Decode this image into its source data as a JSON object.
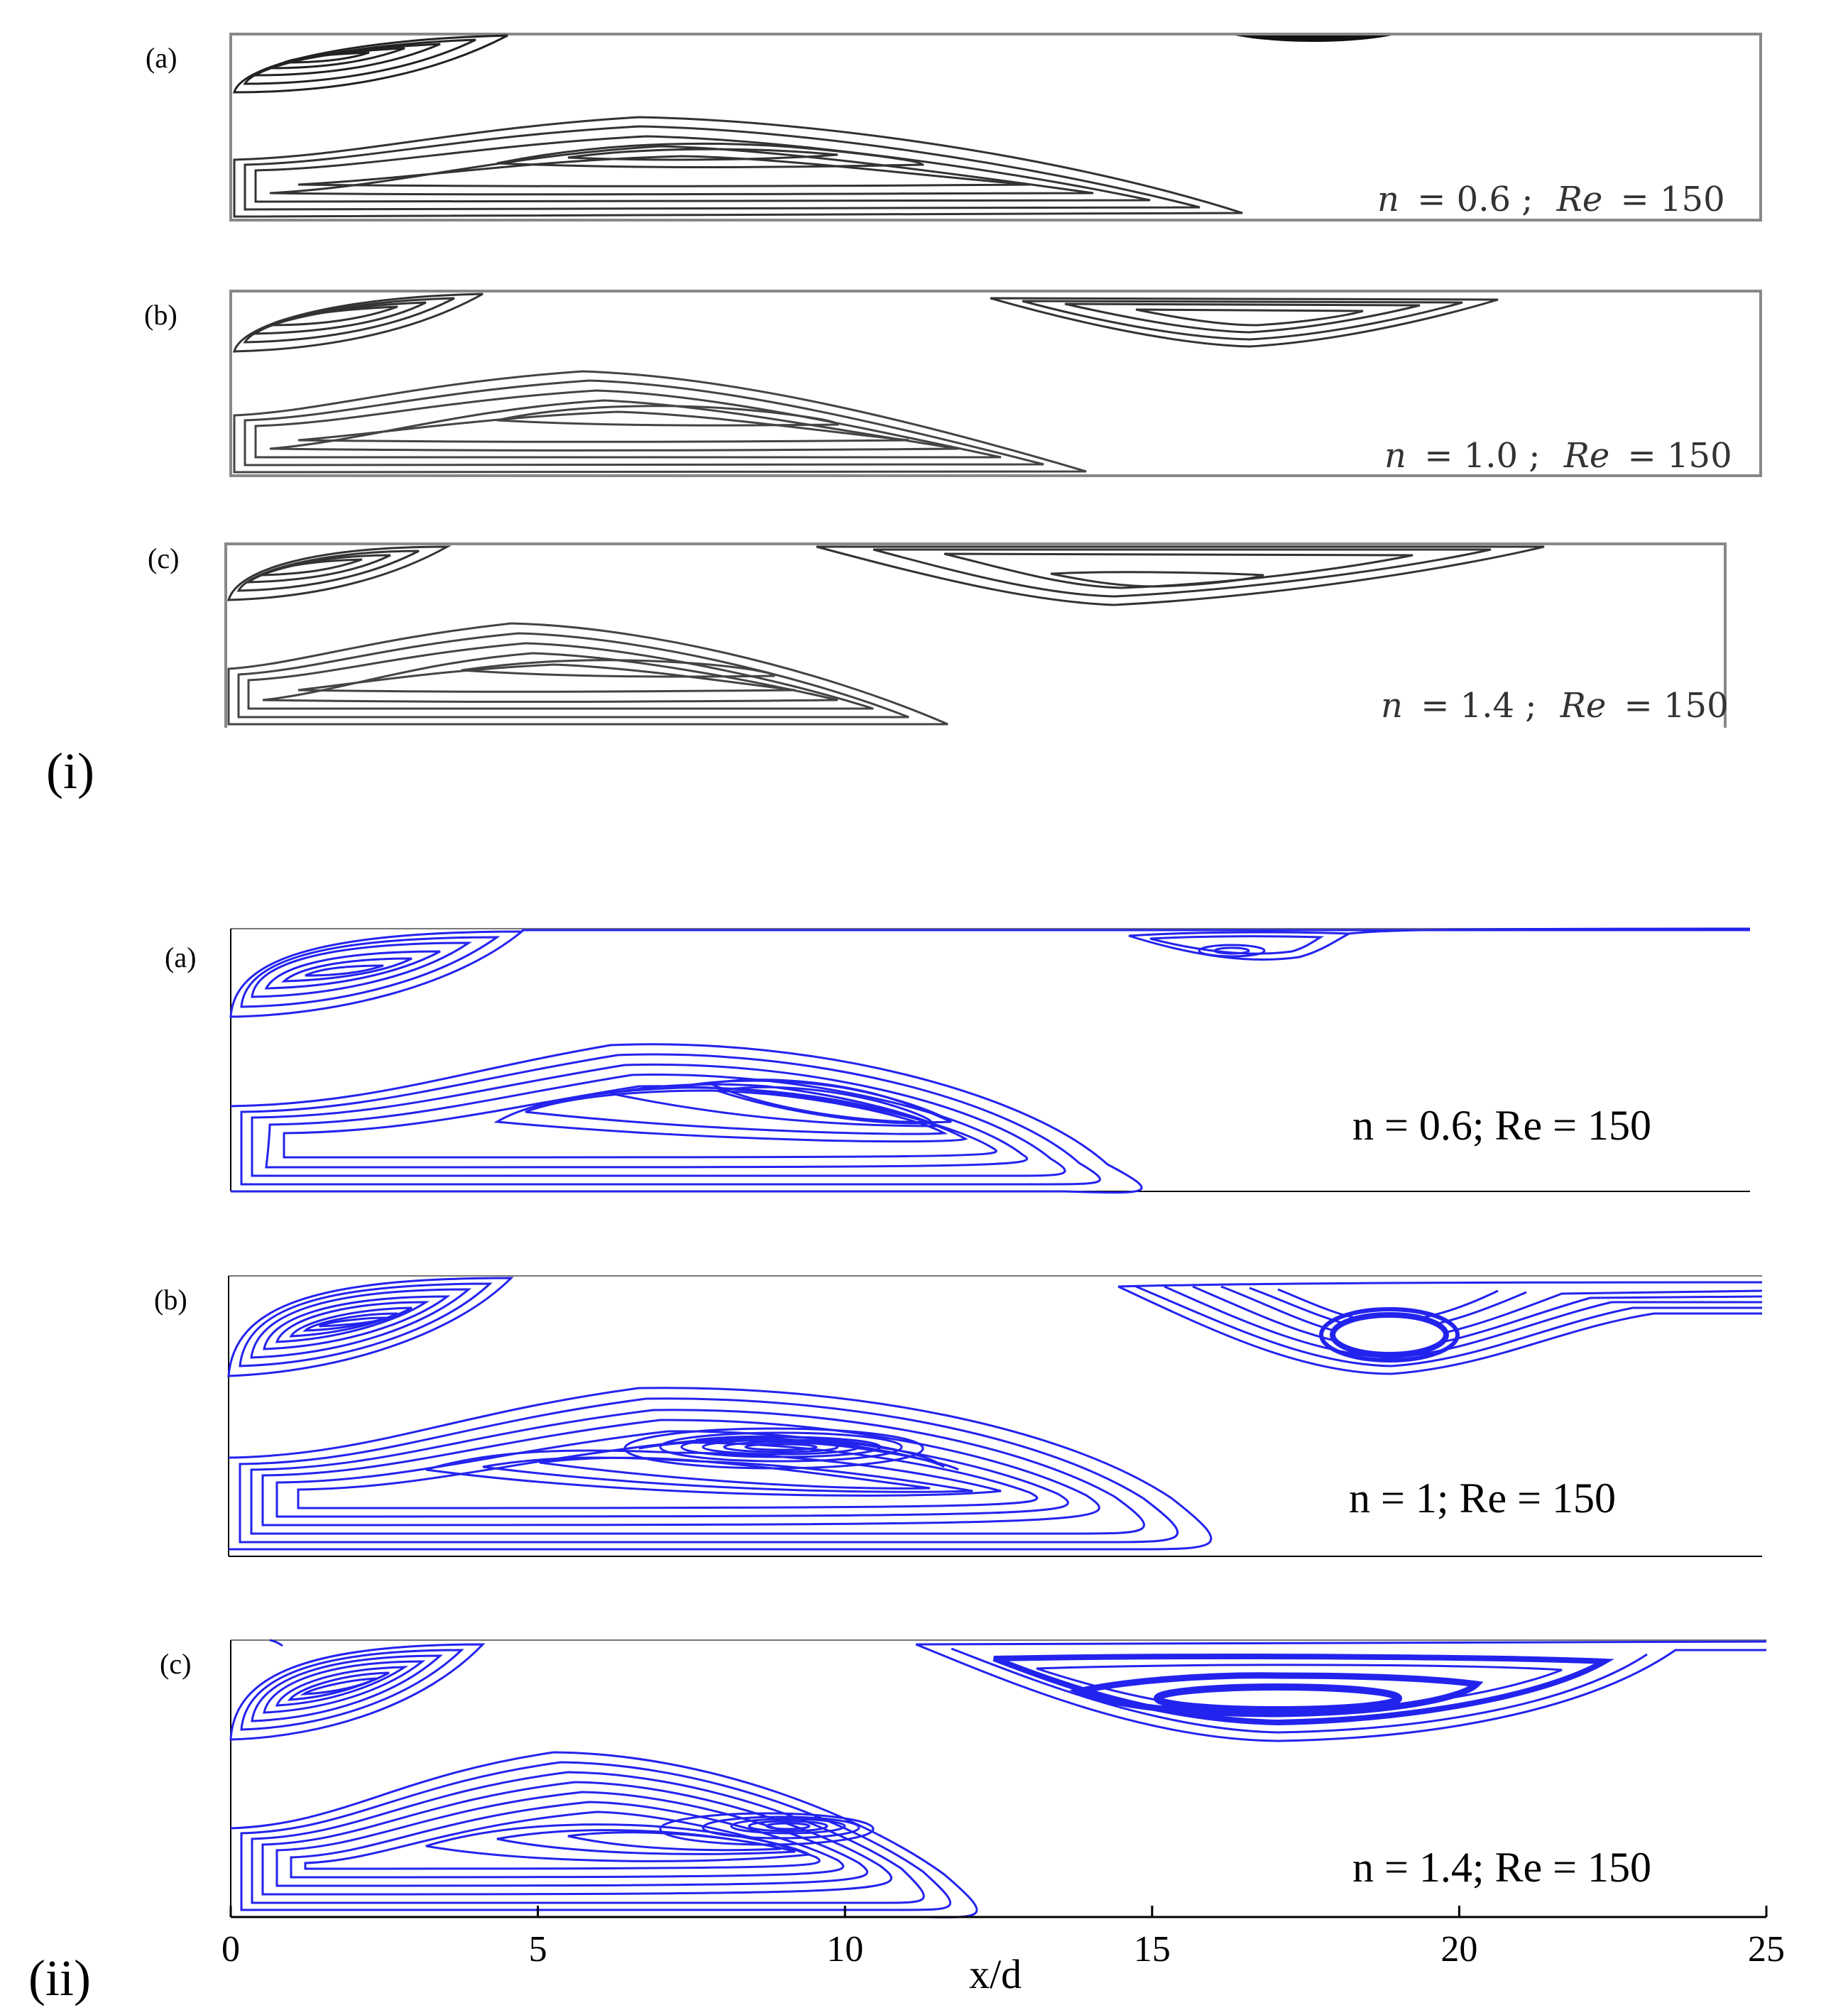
{
  "part_i": {
    "label": "(i)",
    "panels": [
      {
        "label": "(a)",
        "n_text": "n",
        "n_value": "= 0.6 ;",
        "re_text": "Re",
        "re_value": "= 150"
      },
      {
        "label": "(b)",
        "n_text": "n",
        "n_value": "= 1.0 ;",
        "re_text": "Re",
        "re_value": "= 150"
      },
      {
        "label": "(c)",
        "n_text": "n",
        "n_value": "= 1.4 ;",
        "re_text": "Re",
        "re_value": "= 150"
      }
    ]
  },
  "part_ii": {
    "label": "(ii)",
    "panels": [
      {
        "label": "(a)",
        "annotation": "n = 0.6; Re = 150"
      },
      {
        "label": "(b)",
        "annotation": "n = 1; Re = 150"
      },
      {
        "label": "(c)",
        "annotation": "n = 1.4; Re = 150"
      }
    ],
    "x_axis": {
      "label": "x/d",
      "ticks": [
        "0",
        "5",
        "10",
        "15",
        "20",
        "25"
      ],
      "range": [
        0,
        25
      ]
    }
  },
  "colors": {
    "streamline_ii": "#2323ee",
    "streamline_i": "#2a2a2a",
    "frame": "#888888"
  }
}
